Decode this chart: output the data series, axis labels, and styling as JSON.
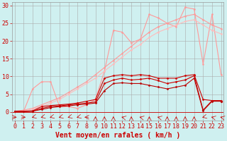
{
  "background_color": "#cff0f0",
  "grid_color": "#aaaaaa",
  "xlabel": "Vent moyen/en rafales ( km/h )",
  "xlabel_color": "#cc0000",
  "xlabel_fontsize": 7,
  "yticks": [
    0,
    5,
    10,
    15,
    20,
    25,
    30
  ],
  "xticks": [
    0,
    1,
    2,
    3,
    4,
    5,
    6,
    7,
    8,
    9,
    10,
    11,
    12,
    13,
    14,
    15,
    16,
    17,
    18,
    19,
    20,
    21,
    22,
    23
  ],
  "ylim": [
    0,
    31
  ],
  "xlim": [
    -0.3,
    23.3
  ],
  "tick_color": "#cc0000",
  "tick_fontsize": 6,
  "series": [
    {
      "x": [
        0,
        1,
        2,
        3,
        4,
        5,
        6,
        7,
        8,
        9,
        10,
        11,
        12,
        13,
        14,
        15,
        16,
        17,
        18,
        19,
        20,
        21,
        22,
        23
      ],
      "y": [
        0.2,
        0.2,
        6.5,
        8.5,
        8.5,
        1.5,
        1.5,
        1.0,
        2.0,
        3.5,
        11.5,
        23.0,
        22.5,
        19.5,
        20.5,
        27.5,
        26.5,
        25.0,
        24.0,
        29.5,
        29.0,
        13.5,
        27.5,
        10.5
      ],
      "color": "#ff9999",
      "linewidth": 0.8,
      "marker": "o",
      "markersize": 1.5
    },
    {
      "x": [
        0,
        1,
        2,
        3,
        4,
        5,
        6,
        7,
        8,
        9,
        10,
        11,
        12,
        13,
        14,
        15,
        16,
        17,
        18,
        19,
        20,
        21,
        22,
        23
      ],
      "y": [
        0.2,
        0.5,
        1.0,
        2.0,
        3.0,
        4.0,
        5.5,
        7.0,
        8.5,
        10.5,
        12.5,
        14.5,
        16.5,
        18.5,
        20.5,
        22.5,
        24.0,
        25.0,
        26.0,
        27.0,
        27.5,
        26.0,
        24.5,
        23.5
      ],
      "color": "#ff9999",
      "linewidth": 0.8,
      "marker": "o",
      "markersize": 1.5
    },
    {
      "x": [
        0,
        1,
        2,
        3,
        4,
        5,
        6,
        7,
        8,
        9,
        10,
        11,
        12,
        13,
        14,
        15,
        16,
        17,
        18,
        19,
        20,
        21,
        22,
        23
      ],
      "y": [
        0.1,
        0.3,
        0.8,
        1.5,
        2.5,
        3.5,
        5.0,
        6.5,
        8.0,
        9.5,
        11.5,
        13.5,
        15.5,
        17.5,
        19.0,
        21.0,
        22.5,
        23.5,
        24.5,
        25.5,
        26.0,
        24.5,
        23.0,
        22.0
      ],
      "color": "#ffbbbb",
      "linewidth": 0.8,
      "marker": "o",
      "markersize": 1.5
    },
    {
      "x": [
        0,
        1,
        2,
        3,
        4,
        5,
        6,
        7,
        8,
        9,
        10,
        11,
        12,
        13,
        14,
        15,
        16,
        17,
        18,
        19,
        20,
        21,
        22,
        23
      ],
      "y": [
        0.2,
        0.2,
        0.3,
        1.5,
        1.8,
        2.0,
        2.2,
        2.5,
        3.0,
        3.5,
        9.5,
        10.2,
        10.5,
        10.2,
        10.5,
        10.2,
        9.5,
        9.5,
        9.5,
        10.2,
        10.5,
        3.5,
        3.2,
        3.2
      ],
      "color": "#cc0000",
      "linewidth": 0.8,
      "marker": "D",
      "markersize": 1.5
    },
    {
      "x": [
        0,
        1,
        2,
        3,
        4,
        5,
        6,
        7,
        8,
        9,
        10,
        11,
        12,
        13,
        14,
        15,
        16,
        17,
        18,
        19,
        20,
        21,
        22,
        23
      ],
      "y": [
        0.1,
        0.1,
        0.2,
        1.0,
        1.5,
        1.7,
        2.0,
        2.2,
        2.5,
        2.8,
        8.0,
        9.0,
        9.5,
        9.0,
        9.2,
        9.5,
        8.8,
        8.0,
        8.5,
        9.0,
        10.2,
        0.5,
        3.2,
        3.0
      ],
      "color": "#cc0000",
      "linewidth": 0.8,
      "marker": "D",
      "markersize": 1.5
    },
    {
      "x": [
        0,
        1,
        2,
        3,
        4,
        5,
        6,
        7,
        8,
        9,
        10,
        11,
        12,
        13,
        14,
        15,
        16,
        17,
        18,
        19,
        20,
        21,
        22,
        23
      ],
      "y": [
        0.1,
        0.1,
        0.2,
        0.7,
        1.2,
        1.5,
        1.7,
        2.0,
        2.2,
        2.5,
        6.0,
        8.0,
        8.2,
        8.0,
        8.0,
        7.5,
        7.0,
        6.5,
        7.0,
        7.5,
        9.5,
        0.3,
        3.0,
        3.0
      ],
      "color": "#bb0000",
      "linewidth": 0.8,
      "marker": "D",
      "markersize": 1.5
    }
  ],
  "wind_arrows": {
    "x": [
      0,
      1,
      2,
      3,
      4,
      5,
      6,
      7,
      8,
      9,
      10,
      11,
      12,
      13,
      14,
      15,
      16,
      17,
      18,
      19,
      20,
      21,
      22,
      23
    ],
    "angles_deg": [
      0,
      0,
      225,
      225,
      225,
      225,
      225,
      225,
      180,
      90,
      90,
      90,
      135,
      90,
      135,
      90,
      135,
      90,
      90,
      90,
      90,
      225,
      135,
      135
    ]
  }
}
